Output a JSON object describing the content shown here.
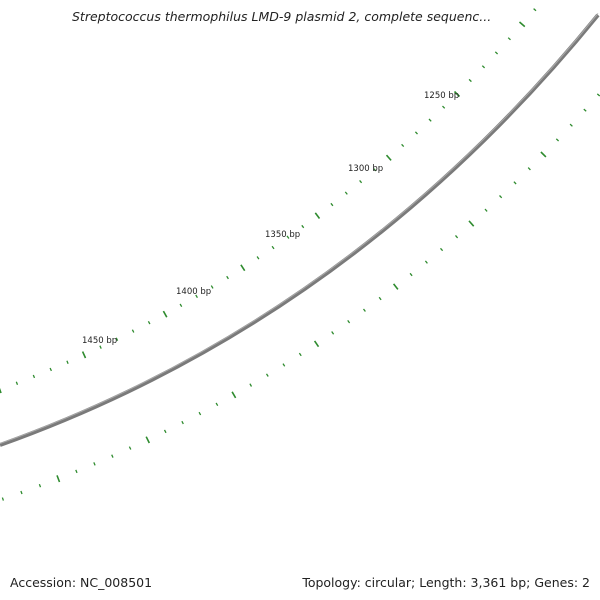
{
  "title": "Streptococcus thermophilus LMD-9 plasmid 2, complete sequenc...",
  "accession_label": "Accession: NC_008501",
  "summary_label": "Topology: circular; Length: 3,361 bp; Genes: 2",
  "scale_labels": [
    "1250 bp",
    "1300 bp",
    "1350 bp",
    "1400 bp",
    "1450 bp"
  ],
  "colors": {
    "backbone": "#808080",
    "tick": "#2e8b2e",
    "text": "#222222"
  }
}
